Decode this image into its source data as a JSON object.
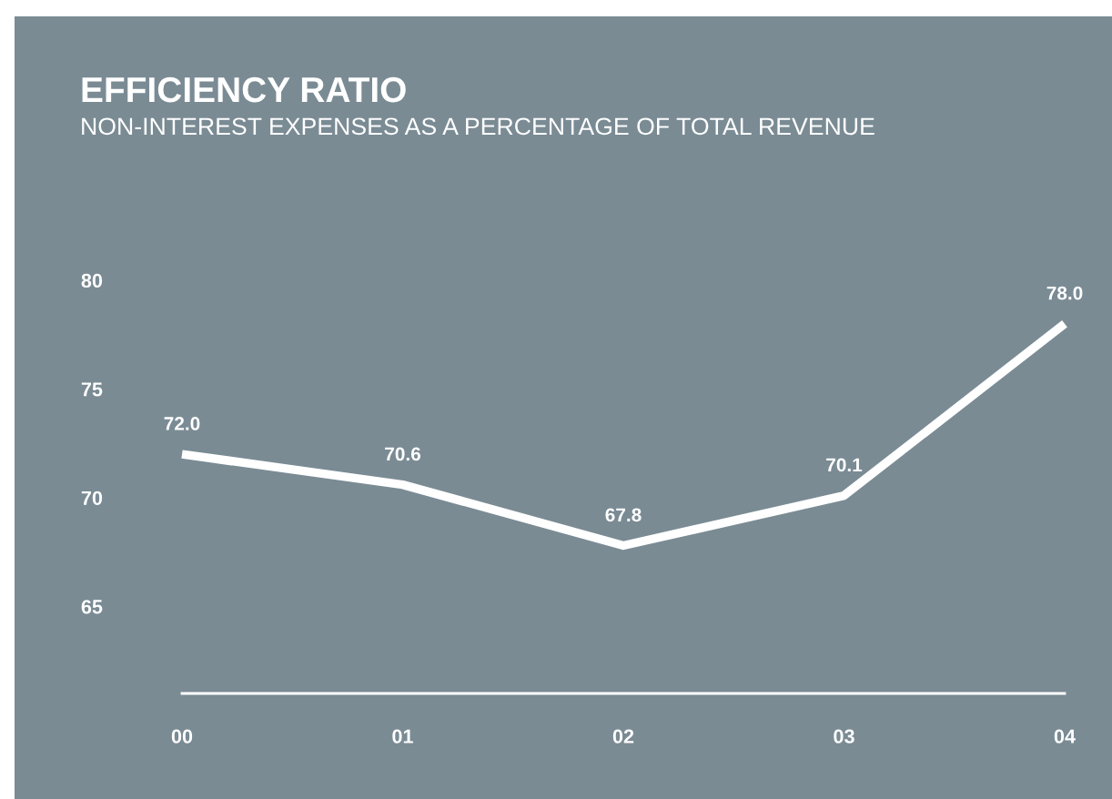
{
  "chart_data": {
    "type": "line",
    "title": "EFFICIENCY RATIO",
    "subtitle": "NON-INTEREST EXPENSES AS A PERCENTAGE OF TOTAL REVENUE",
    "categories": [
      "00",
      "01",
      "02",
      "03",
      "04"
    ],
    "series": [
      {
        "color": "#ffffff",
        "values": [
          72.0,
          70.6,
          67.8,
          70.1,
          78.0
        ],
        "value_labels": [
          "72.0",
          "70.6",
          "67.8",
          "70.1",
          "78.0"
        ]
      }
    ],
    "ylim": [
      61,
      80
    ],
    "yticks": [
      65,
      70,
      75,
      80
    ],
    "grid": false,
    "marker": "none",
    "line_style": "solid"
  }
}
